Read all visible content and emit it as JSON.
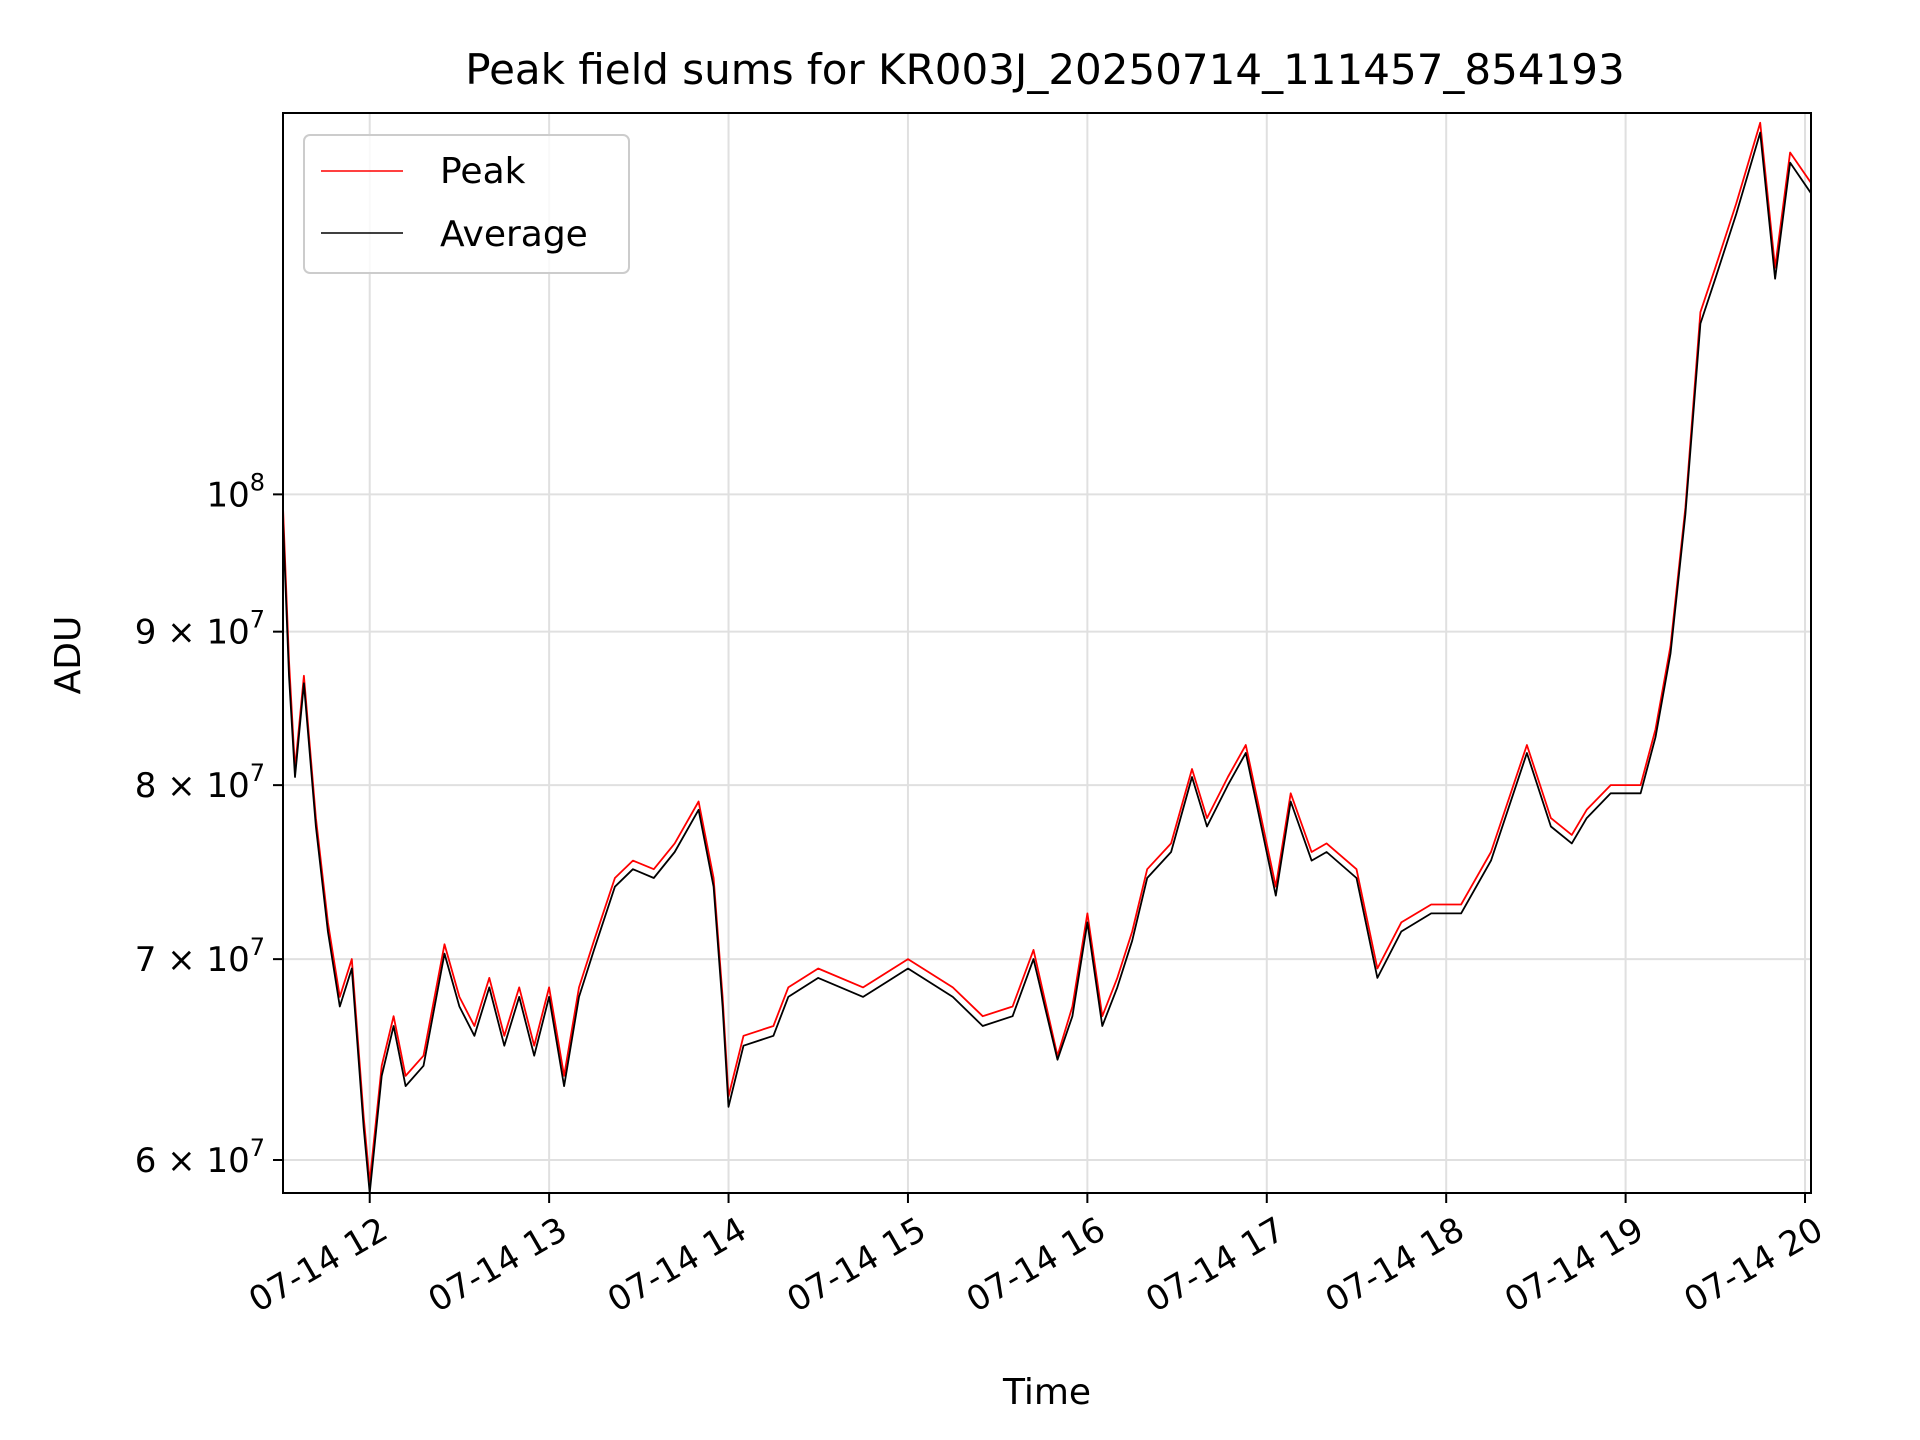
{
  "chart_data": {
    "type": "line",
    "title": "Peak field sums for KR003J_20250714_111457_854193",
    "xlabel": "Time",
    "ylabel": "ADU",
    "yscale": "log",
    "grid": true,
    "legend_position": "upper-left",
    "xlim": [
      "2025-07-14 11:31",
      "2025-07-14 20:02"
    ],
    "ylim": [
      58500000,
      134000000
    ],
    "x_ticks": [
      {
        "t": "2025-07-14 12:00",
        "label": "07-14 12"
      },
      {
        "t": "2025-07-14 13:00",
        "label": "07-14 13"
      },
      {
        "t": "2025-07-14 14:00",
        "label": "07-14 14"
      },
      {
        "t": "2025-07-14 15:00",
        "label": "07-14 15"
      },
      {
        "t": "2025-07-14 16:00",
        "label": "07-14 16"
      },
      {
        "t": "2025-07-14 17:00",
        "label": "07-14 17"
      },
      {
        "t": "2025-07-14 18:00",
        "label": "07-14 18"
      },
      {
        "t": "2025-07-14 19:00",
        "label": "07-14 19"
      },
      {
        "t": "2025-07-14 20:00",
        "label": "07-14 20"
      }
    ],
    "y_ticks": [
      {
        "value": 60000000,
        "label": "6 × 10",
        "exp": "7"
      },
      {
        "value": 70000000,
        "label": "7 × 10",
        "exp": "7"
      },
      {
        "value": 80000000,
        "label": "8 × 10",
        "exp": "7"
      },
      {
        "value": 90000000,
        "label": "9 × 10",
        "exp": "7"
      },
      {
        "value": 100000000,
        "label": "10",
        "exp": "8"
      }
    ],
    "series": [
      {
        "name": "Peak",
        "color": "#ff0000",
        "points": [
          [
            "2025-07-14 11:31",
            99000000
          ],
          [
            "2025-07-14 11:33",
            88000000
          ],
          [
            "2025-07-14 11:35",
            81000000
          ],
          [
            "2025-07-14 11:38",
            87000000
          ],
          [
            "2025-07-14 11:42",
            78000000
          ],
          [
            "2025-07-14 11:46",
            72000000
          ],
          [
            "2025-07-14 11:50",
            68000000
          ],
          [
            "2025-07-14 11:54",
            70000000
          ],
          [
            "2025-07-14 11:58",
            62000000
          ],
          [
            "2025-07-14 12:00",
            59000000
          ],
          [
            "2025-07-14 12:04",
            64500000
          ],
          [
            "2025-07-14 12:08",
            67000000
          ],
          [
            "2025-07-14 12:12",
            64000000
          ],
          [
            "2025-07-14 12:18",
            65000000
          ],
          [
            "2025-07-14 12:25",
            70800000
          ],
          [
            "2025-07-14 12:30",
            68000000
          ],
          [
            "2025-07-14 12:35",
            66500000
          ],
          [
            "2025-07-14 12:40",
            69000000
          ],
          [
            "2025-07-14 12:45",
            66000000
          ],
          [
            "2025-07-14 12:50",
            68500000
          ],
          [
            "2025-07-14 12:55",
            65500000
          ],
          [
            "2025-07-14 13:00",
            68500000
          ],
          [
            "2025-07-14 13:05",
            64000000
          ],
          [
            "2025-07-14 13:10",
            68500000
          ],
          [
            "2025-07-14 13:15",
            71000000
          ],
          [
            "2025-07-14 13:22",
            74500000
          ],
          [
            "2025-07-14 13:28",
            75500000
          ],
          [
            "2025-07-14 13:35",
            75000000
          ],
          [
            "2025-07-14 13:42",
            76500000
          ],
          [
            "2025-07-14 13:50",
            79000000
          ],
          [
            "2025-07-14 13:55",
            74500000
          ],
          [
            "2025-07-14 13:58",
            68000000
          ],
          [
            "2025-07-14 14:00",
            63000000
          ],
          [
            "2025-07-14 14:05",
            66000000
          ],
          [
            "2025-07-14 14:15",
            66500000
          ],
          [
            "2025-07-14 14:20",
            68500000
          ],
          [
            "2025-07-14 14:30",
            69500000
          ],
          [
            "2025-07-14 14:45",
            68500000
          ],
          [
            "2025-07-14 15:00",
            70000000
          ],
          [
            "2025-07-14 15:15",
            68500000
          ],
          [
            "2025-07-14 15:25",
            67000000
          ],
          [
            "2025-07-14 15:35",
            67500000
          ],
          [
            "2025-07-14 15:42",
            70500000
          ],
          [
            "2025-07-14 15:50",
            65000000
          ],
          [
            "2025-07-14 15:55",
            67500000
          ],
          [
            "2025-07-14 16:00",
            72500000
          ],
          [
            "2025-07-14 16:05",
            67000000
          ],
          [
            "2025-07-14 16:10",
            69000000
          ],
          [
            "2025-07-14 16:15",
            71500000
          ],
          [
            "2025-07-14 16:20",
            75000000
          ],
          [
            "2025-07-14 16:28",
            76500000
          ],
          [
            "2025-07-14 16:35",
            81000000
          ],
          [
            "2025-07-14 16:40",
            78000000
          ],
          [
            "2025-07-14 16:47",
            80500000
          ],
          [
            "2025-07-14 16:53",
            82500000
          ],
          [
            "2025-07-14 16:57",
            79000000
          ],
          [
            "2025-07-14 17:03",
            74000000
          ],
          [
            "2025-07-14 17:08",
            79500000
          ],
          [
            "2025-07-14 17:15",
            76000000
          ],
          [
            "2025-07-14 17:20",
            76500000
          ],
          [
            "2025-07-14 17:30",
            75000000
          ],
          [
            "2025-07-14 17:37",
            69500000
          ],
          [
            "2025-07-14 17:45",
            72000000
          ],
          [
            "2025-07-14 17:55",
            73000000
          ],
          [
            "2025-07-14 18:05",
            73000000
          ],
          [
            "2025-07-14 18:15",
            76000000
          ],
          [
            "2025-07-14 18:27",
            82500000
          ],
          [
            "2025-07-14 18:35",
            78000000
          ],
          [
            "2025-07-14 18:42",
            77000000
          ],
          [
            "2025-07-14 18:47",
            78500000
          ],
          [
            "2025-07-14 18:55",
            80000000
          ],
          [
            "2025-07-14 19:05",
            80000000
          ],
          [
            "2025-07-14 19:10",
            83500000
          ],
          [
            "2025-07-14 19:15",
            89000000
          ],
          [
            "2025-07-14 19:20",
            99000000
          ],
          [
            "2025-07-14 19:25",
            115000000
          ],
          [
            "2025-07-14 19:30",
            119000000
          ],
          [
            "2025-07-14 19:37",
            125000000
          ],
          [
            "2025-07-14 19:45",
            133000000
          ],
          [
            "2025-07-14 19:50",
            119000000
          ],
          [
            "2025-07-14 19:55",
            130000000
          ],
          [
            "2025-07-14 20:02",
            127000000
          ]
        ]
      },
      {
        "name": "Average",
        "color": "#000000",
        "points": [
          [
            "2025-07-14 11:31",
            98000000
          ],
          [
            "2025-07-14 11:33",
            87000000
          ],
          [
            "2025-07-14 11:35",
            80500000
          ],
          [
            "2025-07-14 11:38",
            86500000
          ],
          [
            "2025-07-14 11:42",
            77500000
          ],
          [
            "2025-07-14 11:46",
            71500000
          ],
          [
            "2025-07-14 11:50",
            67500000
          ],
          [
            "2025-07-14 11:54",
            69500000
          ],
          [
            "2025-07-14 11:58",
            61500000
          ],
          [
            "2025-07-14 12:00",
            58500000
          ],
          [
            "2025-07-14 12:04",
            64000000
          ],
          [
            "2025-07-14 12:08",
            66500000
          ],
          [
            "2025-07-14 12:12",
            63500000
          ],
          [
            "2025-07-14 12:18",
            64500000
          ],
          [
            "2025-07-14 12:25",
            70300000
          ],
          [
            "2025-07-14 12:30",
            67500000
          ],
          [
            "2025-07-14 12:35",
            66000000
          ],
          [
            "2025-07-14 12:40",
            68500000
          ],
          [
            "2025-07-14 12:45",
            65500000
          ],
          [
            "2025-07-14 12:50",
            68000000
          ],
          [
            "2025-07-14 12:55",
            65000000
          ],
          [
            "2025-07-14 13:00",
            68000000
          ],
          [
            "2025-07-14 13:05",
            63500000
          ],
          [
            "2025-07-14 13:10",
            68000000
          ],
          [
            "2025-07-14 13:15",
            70500000
          ],
          [
            "2025-07-14 13:22",
            74000000
          ],
          [
            "2025-07-14 13:28",
            75000000
          ],
          [
            "2025-07-14 13:35",
            74500000
          ],
          [
            "2025-07-14 13:42",
            76000000
          ],
          [
            "2025-07-14 13:50",
            78500000
          ],
          [
            "2025-07-14 13:55",
            74000000
          ],
          [
            "2025-07-14 13:58",
            67500000
          ],
          [
            "2025-07-14 14:00",
            62500000
          ],
          [
            "2025-07-14 14:05",
            65500000
          ],
          [
            "2025-07-14 14:15",
            66000000
          ],
          [
            "2025-07-14 14:20",
            68000000
          ],
          [
            "2025-07-14 14:30",
            69000000
          ],
          [
            "2025-07-14 14:45",
            68000000
          ],
          [
            "2025-07-14 15:00",
            69500000
          ],
          [
            "2025-07-14 15:15",
            68000000
          ],
          [
            "2025-07-14 15:25",
            66500000
          ],
          [
            "2025-07-14 15:35",
            67000000
          ],
          [
            "2025-07-14 15:42",
            70000000
          ],
          [
            "2025-07-14 15:50",
            64800000
          ],
          [
            "2025-07-14 15:55",
            67000000
          ],
          [
            "2025-07-14 16:00",
            72000000
          ],
          [
            "2025-07-14 16:05",
            66500000
          ],
          [
            "2025-07-14 16:10",
            68500000
          ],
          [
            "2025-07-14 16:15",
            71000000
          ],
          [
            "2025-07-14 16:20",
            74500000
          ],
          [
            "2025-07-14 16:28",
            76000000
          ],
          [
            "2025-07-14 16:35",
            80500000
          ],
          [
            "2025-07-14 16:40",
            77500000
          ],
          [
            "2025-07-14 16:47",
            80000000
          ],
          [
            "2025-07-14 16:53",
            82000000
          ],
          [
            "2025-07-14 16:57",
            78500000
          ],
          [
            "2025-07-14 17:03",
            73500000
          ],
          [
            "2025-07-14 17:08",
            79000000
          ],
          [
            "2025-07-14 17:15",
            75500000
          ],
          [
            "2025-07-14 17:20",
            76000000
          ],
          [
            "2025-07-14 17:30",
            74500000
          ],
          [
            "2025-07-14 17:37",
            69000000
          ],
          [
            "2025-07-14 17:45",
            71500000
          ],
          [
            "2025-07-14 17:55",
            72500000
          ],
          [
            "2025-07-14 18:05",
            72500000
          ],
          [
            "2025-07-14 18:15",
            75500000
          ],
          [
            "2025-07-14 18:27",
            82000000
          ],
          [
            "2025-07-14 18:35",
            77500000
          ],
          [
            "2025-07-14 18:42",
            76500000
          ],
          [
            "2025-07-14 18:47",
            78000000
          ],
          [
            "2025-07-14 18:55",
            79500000
          ],
          [
            "2025-07-14 19:05",
            79500000
          ],
          [
            "2025-07-14 19:10",
            83000000
          ],
          [
            "2025-07-14 19:15",
            88500000
          ],
          [
            "2025-07-14 19:20",
            98500000
          ],
          [
            "2025-07-14 19:25",
            114000000
          ],
          [
            "2025-07-14 19:30",
            118000000
          ],
          [
            "2025-07-14 19:37",
            124000000
          ],
          [
            "2025-07-14 19:45",
            132000000
          ],
          [
            "2025-07-14 19:50",
            118000000
          ],
          [
            "2025-07-14 19:55",
            129000000
          ],
          [
            "2025-07-14 20:02",
            126000000
          ]
        ]
      }
    ]
  }
}
